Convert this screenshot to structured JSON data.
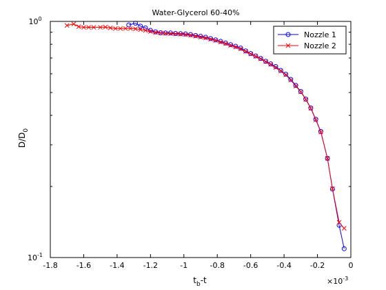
{
  "chart_data": {
    "type": "line",
    "title": "Water-Glycerol 60-40%",
    "xlabel": "t_b-t",
    "ylabel": "D/D_0",
    "x_multiplier": "×10^-3",
    "xlim": [
      -1.8,
      0
    ],
    "ylim": [
      0.1,
      1
    ],
    "yscale": "log",
    "grid": false,
    "legend_position": "top-right",
    "x_ticks": [
      -1.8,
      -1.6,
      -1.4,
      -1.2,
      -1,
      -0.8,
      -0.6,
      -0.4,
      -0.2,
      0
    ],
    "x_tick_labels": [
      "-1.8",
      "-1.6",
      "-1.4",
      "-1.2",
      "-1",
      "-0.8",
      "-0.6",
      "-0.4",
      "-0.2",
      "0"
    ],
    "y_tick_labels": [
      {
        "base": "10",
        "exp": "0",
        "value": 1
      },
      {
        "base": "10",
        "exp": "-1",
        "value": 0.1
      }
    ],
    "series": [
      {
        "name": "Nozzle 1",
        "color": "#0000ff",
        "marker": "circle",
        "points": [
          [
            -1.33,
            0.966
          ],
          [
            -1.29,
            0.982
          ],
          [
            -1.26,
            0.955
          ],
          [
            -1.23,
            0.938
          ],
          [
            -1.2,
            0.916
          ],
          [
            -1.17,
            0.903
          ],
          [
            -1.14,
            0.895
          ],
          [
            -1.11,
            0.893
          ],
          [
            -1.08,
            0.893
          ],
          [
            -1.05,
            0.889
          ],
          [
            -1.02,
            0.887
          ],
          [
            -0.99,
            0.885
          ],
          [
            -0.96,
            0.879
          ],
          [
            -0.93,
            0.872
          ],
          [
            -0.9,
            0.865
          ],
          [
            -0.87,
            0.857
          ],
          [
            -0.84,
            0.846
          ],
          [
            -0.81,
            0.835
          ],
          [
            -0.78,
            0.823
          ],
          [
            -0.75,
            0.81
          ],
          [
            -0.72,
            0.797
          ],
          [
            -0.69,
            0.785
          ],
          [
            -0.66,
            0.771
          ],
          [
            -0.63,
            0.75
          ],
          [
            -0.6,
            0.731
          ],
          [
            -0.57,
            0.714
          ],
          [
            -0.54,
            0.697
          ],
          [
            -0.51,
            0.678
          ],
          [
            -0.48,
            0.661
          ],
          [
            -0.45,
            0.644
          ],
          [
            -0.42,
            0.62
          ],
          [
            -0.39,
            0.598
          ],
          [
            -0.36,
            0.568
          ],
          [
            -0.33,
            0.536
          ],
          [
            -0.3,
            0.505
          ],
          [
            -0.27,
            0.469
          ],
          [
            -0.24,
            0.43
          ],
          [
            -0.21,
            0.385
          ],
          [
            -0.18,
            0.342
          ],
          [
            -0.14,
            0.263
          ],
          [
            -0.11,
            0.195
          ],
          [
            -0.07,
            0.137
          ],
          [
            -0.04,
            0.109
          ]
        ]
      },
      {
        "name": "Nozzle 2",
        "color": "#ff0000",
        "marker": "x",
        "points": [
          [
            -1.7,
            0.961
          ],
          [
            -1.66,
            0.975
          ],
          [
            -1.63,
            0.95
          ],
          [
            -1.6,
            0.944
          ],
          [
            -1.57,
            0.944
          ],
          [
            -1.54,
            0.944
          ],
          [
            -1.5,
            0.944
          ],
          [
            -1.47,
            0.946
          ],
          [
            -1.44,
            0.939
          ],
          [
            -1.41,
            0.933
          ],
          [
            -1.38,
            0.933
          ],
          [
            -1.35,
            0.933
          ],
          [
            -1.32,
            0.933
          ],
          [
            -1.29,
            0.93
          ],
          [
            -1.26,
            0.924
          ],
          [
            -1.23,
            0.916
          ],
          [
            -1.2,
            0.906
          ],
          [
            -1.17,
            0.898
          ],
          [
            -1.14,
            0.893
          ],
          [
            -1.11,
            0.89
          ],
          [
            -1.08,
            0.887
          ],
          [
            -1.05,
            0.885
          ],
          [
            -1.02,
            0.883
          ],
          [
            -0.99,
            0.879
          ],
          [
            -0.96,
            0.873
          ],
          [
            -0.93,
            0.866
          ],
          [
            -0.9,
            0.858
          ],
          [
            -0.87,
            0.851
          ],
          [
            -0.84,
            0.84
          ],
          [
            -0.81,
            0.83
          ],
          [
            -0.78,
            0.817
          ],
          [
            -0.75,
            0.805
          ],
          [
            -0.72,
            0.791
          ],
          [
            -0.69,
            0.779
          ],
          [
            -0.66,
            0.765
          ],
          [
            -0.63,
            0.746
          ],
          [
            -0.6,
            0.728
          ],
          [
            -0.57,
            0.711
          ],
          [
            -0.54,
            0.694
          ],
          [
            -0.51,
            0.675
          ],
          [
            -0.48,
            0.657
          ],
          [
            -0.45,
            0.638
          ],
          [
            -0.42,
            0.617
          ],
          [
            -0.39,
            0.594
          ],
          [
            -0.36,
            0.564
          ],
          [
            -0.33,
            0.532
          ],
          [
            -0.3,
            0.503
          ],
          [
            -0.27,
            0.467
          ],
          [
            -0.24,
            0.428
          ],
          [
            -0.21,
            0.383
          ],
          [
            -0.18,
            0.34
          ],
          [
            -0.14,
            0.263
          ],
          [
            -0.11,
            0.196
          ],
          [
            -0.07,
            0.141
          ],
          [
            -0.04,
            0.133
          ]
        ]
      }
    ]
  }
}
